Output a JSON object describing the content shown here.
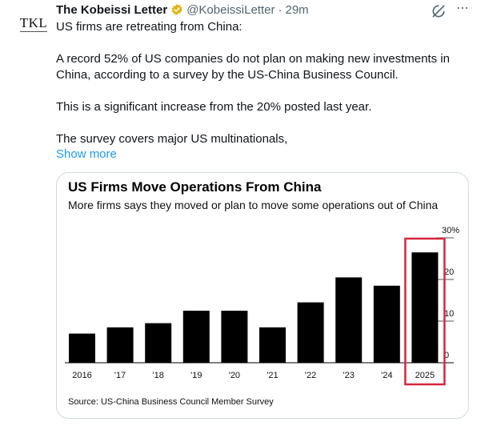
{
  "tweet": {
    "author_name": "The Kobeissi Letter",
    "handle": "@KobeissiLetter",
    "separator": "·",
    "time": "29m",
    "avatar_text": "TKL",
    "paragraphs": [
      "US firms are retreating from China:",
      "A record 52% of US companies do not plan on making new investments in China, according to a survey by the US-China Business Council.",
      "This is a significant increase from the 20% posted last year.",
      "The survey covers major US multinationals,"
    ],
    "show_more": "Show more",
    "more_icon": "⋯"
  },
  "icons": {
    "verified": "verified-badge-icon",
    "grok": "grok-icon",
    "more": "more-options-icon"
  },
  "colors": {
    "verified_gold": "#e2b719",
    "link_blue": "#1d9bf0",
    "highlight_red": "#d7263d",
    "bar": "#000000"
  },
  "chart_data": {
    "type": "bar",
    "title": "US Firms Move Operations From China",
    "subtitle": "More firms says they moved or plan to move some operations out of China",
    "source": "Source: US-China Business Council Member Survey",
    "categories": [
      "2016",
      "'17",
      "'18",
      "'19",
      "'20",
      "'21",
      "'22",
      "'23",
      "'24",
      "2025"
    ],
    "values": [
      7,
      8.5,
      9.5,
      12.5,
      12.5,
      8.5,
      14.5,
      20.5,
      18.5,
      26.5
    ],
    "y_ticks": [
      "0",
      "10",
      "20",
      "30%"
    ],
    "ylim": [
      0,
      30
    ],
    "y_axis_position": "right",
    "highlight_category": "2025"
  }
}
